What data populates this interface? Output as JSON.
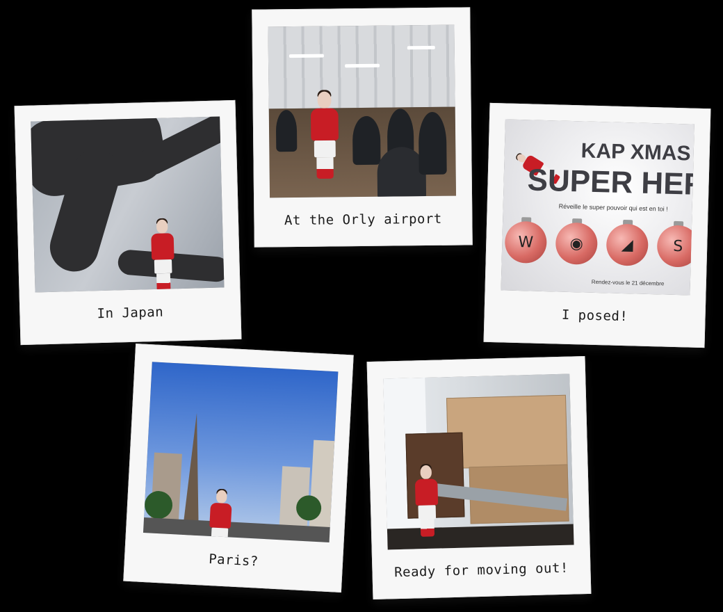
{
  "polaroids": [
    {
      "caption": "In Japan"
    },
    {
      "caption": "At the Orly airport"
    },
    {
      "caption": "I posed!"
    },
    {
      "caption": "Paris?"
    },
    {
      "caption": "Ready for moving out!"
    }
  ],
  "poster": {
    "title_line1": "KAP XMAS",
    "title_line2": "SUPER HER",
    "subtitle": "Réveille le super pouvoir qui est en toi !",
    "footer": "Rendez-vous le 21 décembre"
  }
}
